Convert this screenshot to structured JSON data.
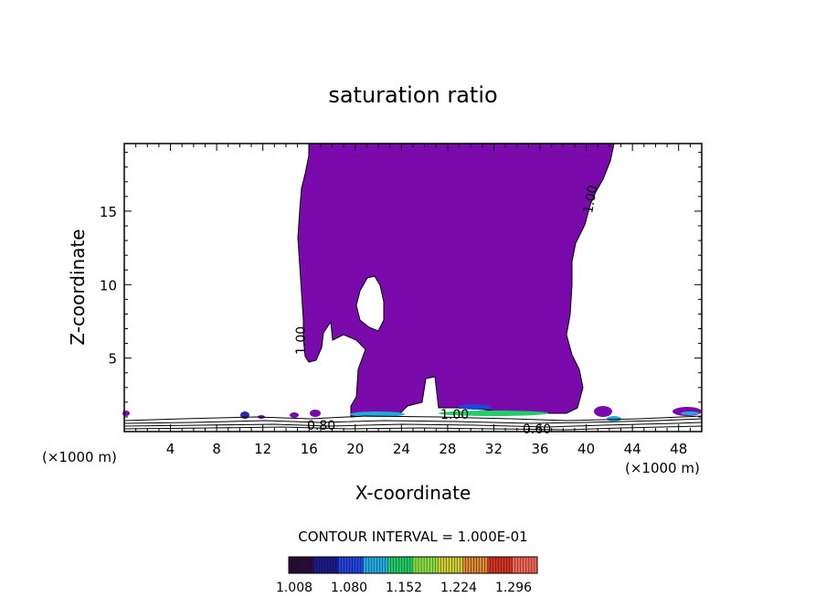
{
  "chart_data": {
    "type": "contour",
    "title": "saturation ratio",
    "xlabel": "X-coordinate",
    "ylabel": "Z-coordinate",
    "x_unit": "(×1000 m)",
    "x_unit_right": "(×1000 m)",
    "xlim": [
      0,
      50
    ],
    "ylim": [
      0,
      19.6
    ],
    "xticks": [
      4,
      8,
      12,
      16,
      20,
      24,
      28,
      32,
      36,
      40,
      44,
      48
    ],
    "yticks": [
      5,
      10,
      15
    ],
    "contour_labels": [
      "1.00",
      "1.00",
      "0.80",
      "1.00",
      "0.60"
    ],
    "contour_interval": "CONTOUR INTERVAL = 1.000E-01",
    "colorbar": {
      "ticks": [
        "1.008",
        "1.080",
        "1.152",
        "1.224",
        "1.296"
      ],
      "colors": [
        "#2a0a3a",
        "#1a1a8a",
        "#2244dd",
        "#22aadd",
        "#22cc66",
        "#88dd44",
        "#cccc33",
        "#dd8833",
        "#cc3322",
        "#ee6655"
      ]
    },
    "fill_color": "#7b0aad"
  }
}
